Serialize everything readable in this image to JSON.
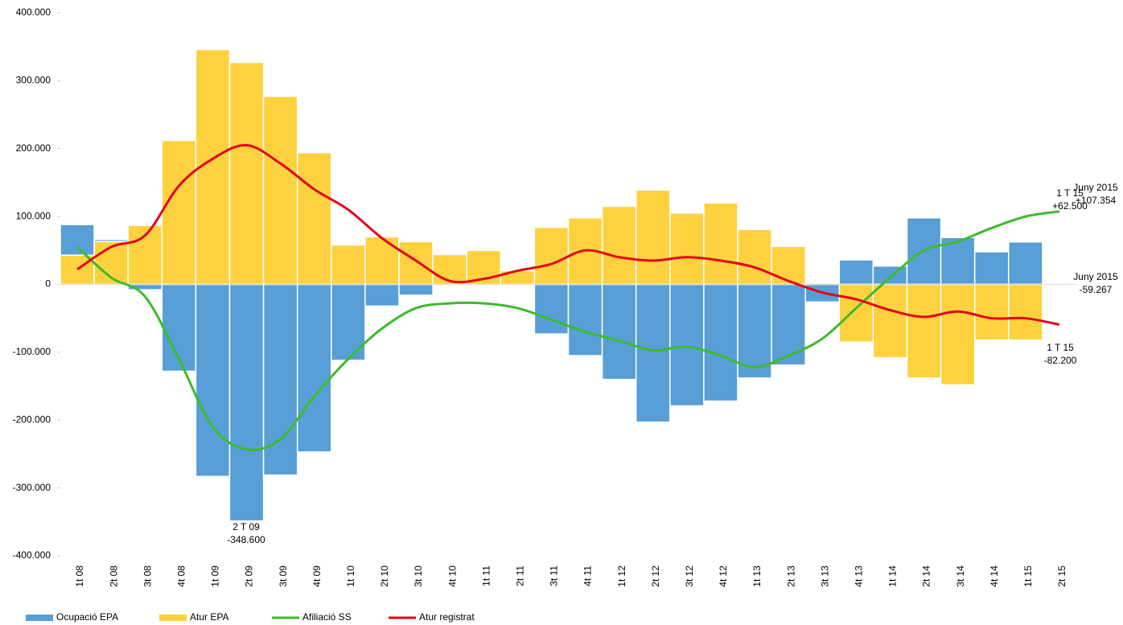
{
  "chart_data": {
    "type": "bar-line",
    "categories": [
      "1t 08",
      "2t 08",
      "3t 08",
      "4t 08",
      "1t 09",
      "2t 09",
      "3t 09",
      "4t 09",
      "1t 10",
      "2t 10",
      "3t 10",
      "4t 10",
      "1t 11",
      "2t 11",
      "3t 11",
      "4t 11",
      "1t 12",
      "2t 12",
      "3t 12",
      "4t 12",
      "1t 13",
      "2t 13",
      "3t 13",
      "4t 13",
      "1t 14",
      "2t 14",
      "3t 14",
      "4t 14",
      "1t 15",
      "2t 15"
    ],
    "series": [
      {
        "name": "Ocupació EPA",
        "kind": "bar",
        "color": "#579fd6",
        "values": [
          88000,
          66000,
          -8000,
          -128000,
          -283000,
          -348600,
          -281000,
          -247000,
          -112000,
          -32000,
          -16000,
          -2000,
          3000,
          2000,
          -73000,
          -105000,
          -140000,
          -203000,
          -179000,
          -172000,
          -138000,
          -119000,
          -26000,
          36000,
          27000,
          98000,
          69000,
          48000,
          62500,
          null
        ]
      },
      {
        "name": "Atur EPA",
        "kind": "bar",
        "color": "#fdd23e",
        "values": [
          43000,
          63000,
          87000,
          212000,
          346000,
          327000,
          277000,
          194000,
          58000,
          70000,
          63000,
          44000,
          50000,
          20000,
          84000,
          98000,
          115000,
          139000,
          105000,
          120000,
          81000,
          56000,
          2000,
          -85000,
          -108000,
          -138000,
          -148000,
          -82000,
          -82200,
          null
        ]
      },
      {
        "name": "Afiliació SS",
        "kind": "line",
        "color": "#3dbb2c",
        "values": [
          55000,
          10000,
          -18000,
          -110000,
          -210000,
          -243000,
          -228000,
          -165000,
          -110000,
          -65000,
          -35000,
          -28000,
          -28000,
          -35000,
          -52000,
          -70000,
          -83000,
          -97000,
          -92000,
          -105000,
          -122000,
          -105000,
          -80000,
          -35000,
          10000,
          50000,
          63000,
          83000,
          100000,
          107354
        ]
      },
      {
        "name": "Atur registrat",
        "kind": "line",
        "color": "#e3051b",
        "values": [
          22000,
          55000,
          72000,
          145000,
          185000,
          205000,
          178000,
          140000,
          110000,
          68000,
          35000,
          5000,
          8000,
          20000,
          30000,
          50000,
          40000,
          35000,
          40000,
          35000,
          25000,
          5000,
          -12000,
          -22000,
          -38000,
          -48000,
          -40000,
          -50000,
          -50000,
          -59267
        ]
      }
    ],
    "ylim": [
      -400000,
      400000
    ],
    "yticks": [
      {
        "value": -400000,
        "label": "-400.000"
      },
      {
        "value": -300000,
        "label": "-300.000"
      },
      {
        "value": -200000,
        "label": "-200.000"
      },
      {
        "value": -100000,
        "label": "-100.000"
      },
      0,
      {
        "value": 100000,
        "label": "100.000"
      },
      {
        "value": 200000,
        "label": "200.000"
      },
      {
        "value": 300000,
        "label": "300.000"
      },
      {
        "value": 400000,
        "label": "400.000"
      }
    ],
    "annotations": [
      {
        "lines": [
          "2 T 09",
          "-348.600"
        ],
        "color": "#579fd6"
      },
      {
        "lines": [
          "1 T 15",
          "+62.500"
        ],
        "color": "#579fd6"
      },
      {
        "lines": [
          "Juny 2015",
          "+107.354"
        ],
        "color": "#3dbb2c"
      },
      {
        "lines": [
          "Juny 2015",
          "-59.267"
        ],
        "color": "#e3051b"
      },
      {
        "lines": [
          "1 T 15",
          "-82.200"
        ],
        "color": "#f5a623"
      }
    ]
  }
}
